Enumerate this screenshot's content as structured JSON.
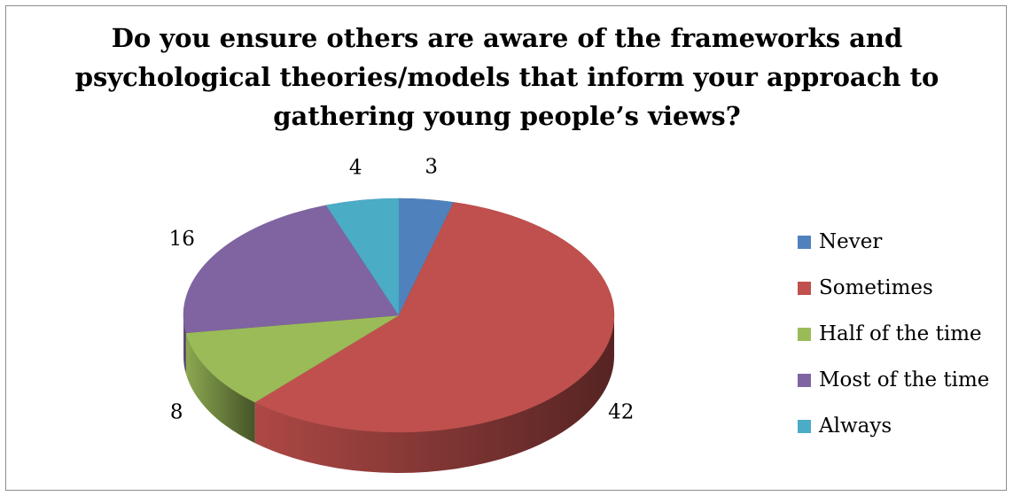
{
  "chart_data": {
    "type": "pie",
    "title_lines": [
      "Do you ensure others are aware of the frameworks and",
      "psychological theories/models that inform your approach to",
      "gathering young people’s views?"
    ],
    "categories": [
      "Never",
      "Sometimes",
      "Half of the time",
      "Most of the time",
      "Always"
    ],
    "values": [
      3,
      42,
      8,
      16,
      4
    ],
    "data_labels": [
      "3",
      "42",
      "8",
      "16",
      "4"
    ],
    "colors": [
      "#4f81bd",
      "#c0504d",
      "#9bbb59",
      "#8064a2",
      "#4bacc6"
    ],
    "legend_position": "right",
    "style": "3d"
  }
}
